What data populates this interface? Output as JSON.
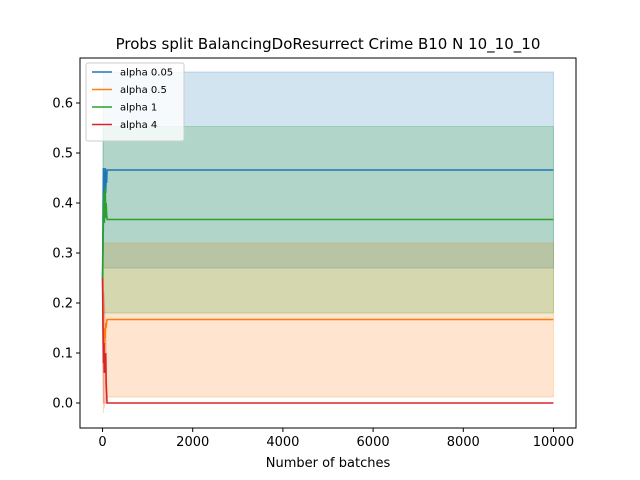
{
  "chart_data": {
    "type": "line",
    "title": "Probs split BalancingDoResurrect Crime B10 N 10_10_10",
    "xlabel": "Number of batches",
    "ylabel": "",
    "xlim": [
      -500,
      10500
    ],
    "ylim": [
      -0.05,
      0.69
    ],
    "xticks": [
      0,
      2000,
      4000,
      6000,
      8000,
      10000
    ],
    "xtick_labels": [
      "0",
      "2000",
      "4000",
      "6000",
      "8000",
      "10000"
    ],
    "yticks": [
      0.0,
      0.1,
      0.2,
      0.3,
      0.4,
      0.5,
      0.6
    ],
    "ytick_labels": [
      "0.0",
      "0.1",
      "0.2",
      "0.3",
      "0.4",
      "0.5",
      "0.6"
    ],
    "grid": false,
    "legend_position": "top-left",
    "series": [
      {
        "name": "alpha 0.05",
        "color": "#1f77b4",
        "x": [
          0,
          10,
          20,
          30,
          40,
          50,
          60,
          70,
          80,
          90,
          100,
          10000
        ],
        "y": [
          0.25,
          0.36,
          0.47,
          0.44,
          0.46,
          0.4,
          0.47,
          0.42,
          0.46,
          0.44,
          0.466,
          0.466
        ],
        "band_upper": [
          0.25,
          0.5,
          0.66,
          0.66,
          0.66,
          0.66,
          0.66,
          0.66,
          0.66,
          0.66,
          0.662,
          0.662
        ],
        "band_lower": [
          0.25,
          0.2,
          0.28,
          0.27,
          0.27,
          0.27,
          0.27,
          0.27,
          0.27,
          0.27,
          0.27,
          0.27
        ]
      },
      {
        "name": "alpha 0.5",
        "color": "#ff7f0e",
        "x": [
          0,
          10,
          20,
          30,
          40,
          50,
          60,
          70,
          80,
          90,
          100,
          10000
        ],
        "y": [
          0.25,
          0.18,
          0.12,
          0.14,
          0.1,
          0.15,
          0.13,
          0.16,
          0.15,
          0.16,
          0.167,
          0.167
        ],
        "band_upper": [
          0.25,
          0.3,
          0.32,
          0.32,
          0.32,
          0.32,
          0.32,
          0.32,
          0.32,
          0.32,
          0.32,
          0.32
        ],
        "band_lower": [
          0.25,
          0.05,
          -0.02,
          0.0,
          -0.01,
          0.0,
          0.01,
          0.01,
          0.01,
          0.01,
          0.012,
          0.012
        ]
      },
      {
        "name": "alpha 1",
        "color": "#2ca02c",
        "x": [
          0,
          10,
          20,
          30,
          40,
          50,
          60,
          70,
          80,
          90,
          100,
          10000
        ],
        "y": [
          0.25,
          0.3,
          0.38,
          0.42,
          0.36,
          0.4,
          0.43,
          0.37,
          0.4,
          0.38,
          0.367,
          0.367
        ],
        "band_upper": [
          0.25,
          0.45,
          0.55,
          0.55,
          0.55,
          0.55,
          0.55,
          0.55,
          0.55,
          0.55,
          0.553,
          0.553
        ],
        "band_lower": [
          0.25,
          0.15,
          0.18,
          0.18,
          0.18,
          0.18,
          0.18,
          0.18,
          0.18,
          0.18,
          0.18,
          0.18
        ]
      },
      {
        "name": "alpha 4",
        "color": "#d62728",
        "x": [
          0,
          10,
          20,
          30,
          40,
          50,
          60,
          70,
          80,
          90,
          100,
          10000
        ],
        "y": [
          0.25,
          0.15,
          0.08,
          0.12,
          0.06,
          0.09,
          0.07,
          0.1,
          0.04,
          0.02,
          0.0,
          0.0
        ],
        "band_upper": [
          0.25,
          0.25,
          0.22,
          0.22,
          0.2,
          0.18,
          0.16,
          0.14,
          0.1,
          0.05,
          0.0,
          0.0
        ],
        "band_lower": [
          0.25,
          0.05,
          0.0,
          0.0,
          0.0,
          0.0,
          0.0,
          0.0,
          0.0,
          0.0,
          0.0,
          0.0
        ]
      }
    ]
  }
}
